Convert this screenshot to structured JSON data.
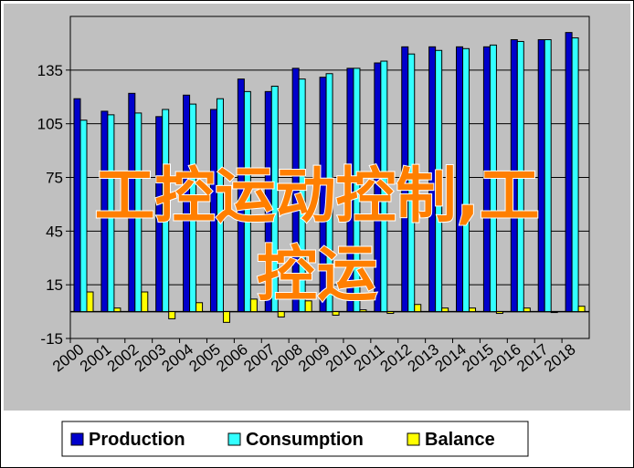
{
  "chart_data": {
    "type": "bar",
    "categories": [
      "2000",
      "2001",
      "2002",
      "2003",
      "2004",
      "2005",
      "2006",
      "2007",
      "2008",
      "2009",
      "2010",
      "2011",
      "2012",
      "2013",
      "2014",
      "2015",
      "2016",
      "2017",
      "2018"
    ],
    "series": [
      {
        "name": "Production",
        "color": "#0000cc",
        "values": [
          119,
          112,
          122,
          109,
          121,
          113,
          130,
          123,
          136,
          131,
          136,
          139,
          148,
          148,
          148,
          148,
          152,
          152,
          156
        ]
      },
      {
        "name": "Consumption",
        "color": "#33ffff",
        "values": [
          107,
          110,
          111,
          113,
          116,
          119,
          123,
          126,
          130,
          133,
          136,
          140,
          144,
          146,
          147,
          149,
          151,
          152,
          153
        ]
      },
      {
        "name": "Balance",
        "color": "#ffff00",
        "values": [
          11,
          2,
          11,
          -4,
          5,
          -6,
          7,
          -3,
          6,
          -2,
          1,
          -1,
          4,
          2,
          2,
          -1,
          2,
          0,
          3
        ]
      }
    ],
    "y_ticks": [
      "-15",
      "15",
      "45",
      "75",
      "105",
      "135"
    ],
    "ylim": [
      -15,
      165
    ],
    "grid": true,
    "legend_position": "bottom",
    "title": "",
    "xlabel": "",
    "ylabel": ""
  },
  "overlay": {
    "line1": "工控运动控制,工",
    "line2": "控运",
    "color": "#ff7f00"
  }
}
